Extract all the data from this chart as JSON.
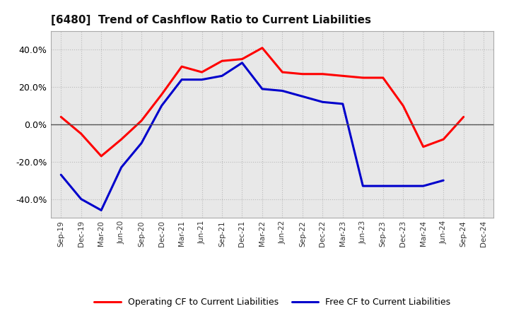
{
  "title": "[6480]  Trend of Cashflow Ratio to Current Liabilities",
  "x_labels": [
    "Sep-19",
    "Dec-19",
    "Mar-20",
    "Jun-20",
    "Sep-20",
    "Dec-20",
    "Mar-21",
    "Jun-21",
    "Sep-21",
    "Dec-21",
    "Mar-22",
    "Jun-22",
    "Sep-22",
    "Dec-22",
    "Mar-23",
    "Jun-23",
    "Sep-23",
    "Dec-23",
    "Mar-24",
    "Jun-24",
    "Sep-24",
    "Dec-24"
  ],
  "operating_cf": [
    0.04,
    -0.05,
    -0.17,
    -0.08,
    0.02,
    0.16,
    0.31,
    0.28,
    0.34,
    0.35,
    0.41,
    0.28,
    0.27,
    0.27,
    0.26,
    0.25,
    0.25,
    0.1,
    -0.12,
    -0.08,
    0.04,
    null
  ],
  "free_cf": [
    -0.27,
    -0.4,
    -0.46,
    -0.23,
    -0.1,
    0.1,
    0.24,
    0.24,
    0.26,
    0.33,
    0.19,
    0.18,
    0.15,
    0.12,
    0.11,
    -0.33,
    -0.33,
    -0.33,
    -0.33,
    -0.3,
    null,
    null
  ],
  "operating_color": "#FF0000",
  "free_color": "#0000CC",
  "ylim": [
    -0.5,
    0.5
  ],
  "yticks": [
    -0.4,
    -0.2,
    0.0,
    0.2,
    0.4
  ],
  "plot_bg_color": "#E8E8E8",
  "fig_bg_color": "#FFFFFF",
  "grid_color": "#BBBBBB",
  "legend_labels": [
    "Operating CF to Current Liabilities",
    "Free CF to Current Liabilities"
  ]
}
